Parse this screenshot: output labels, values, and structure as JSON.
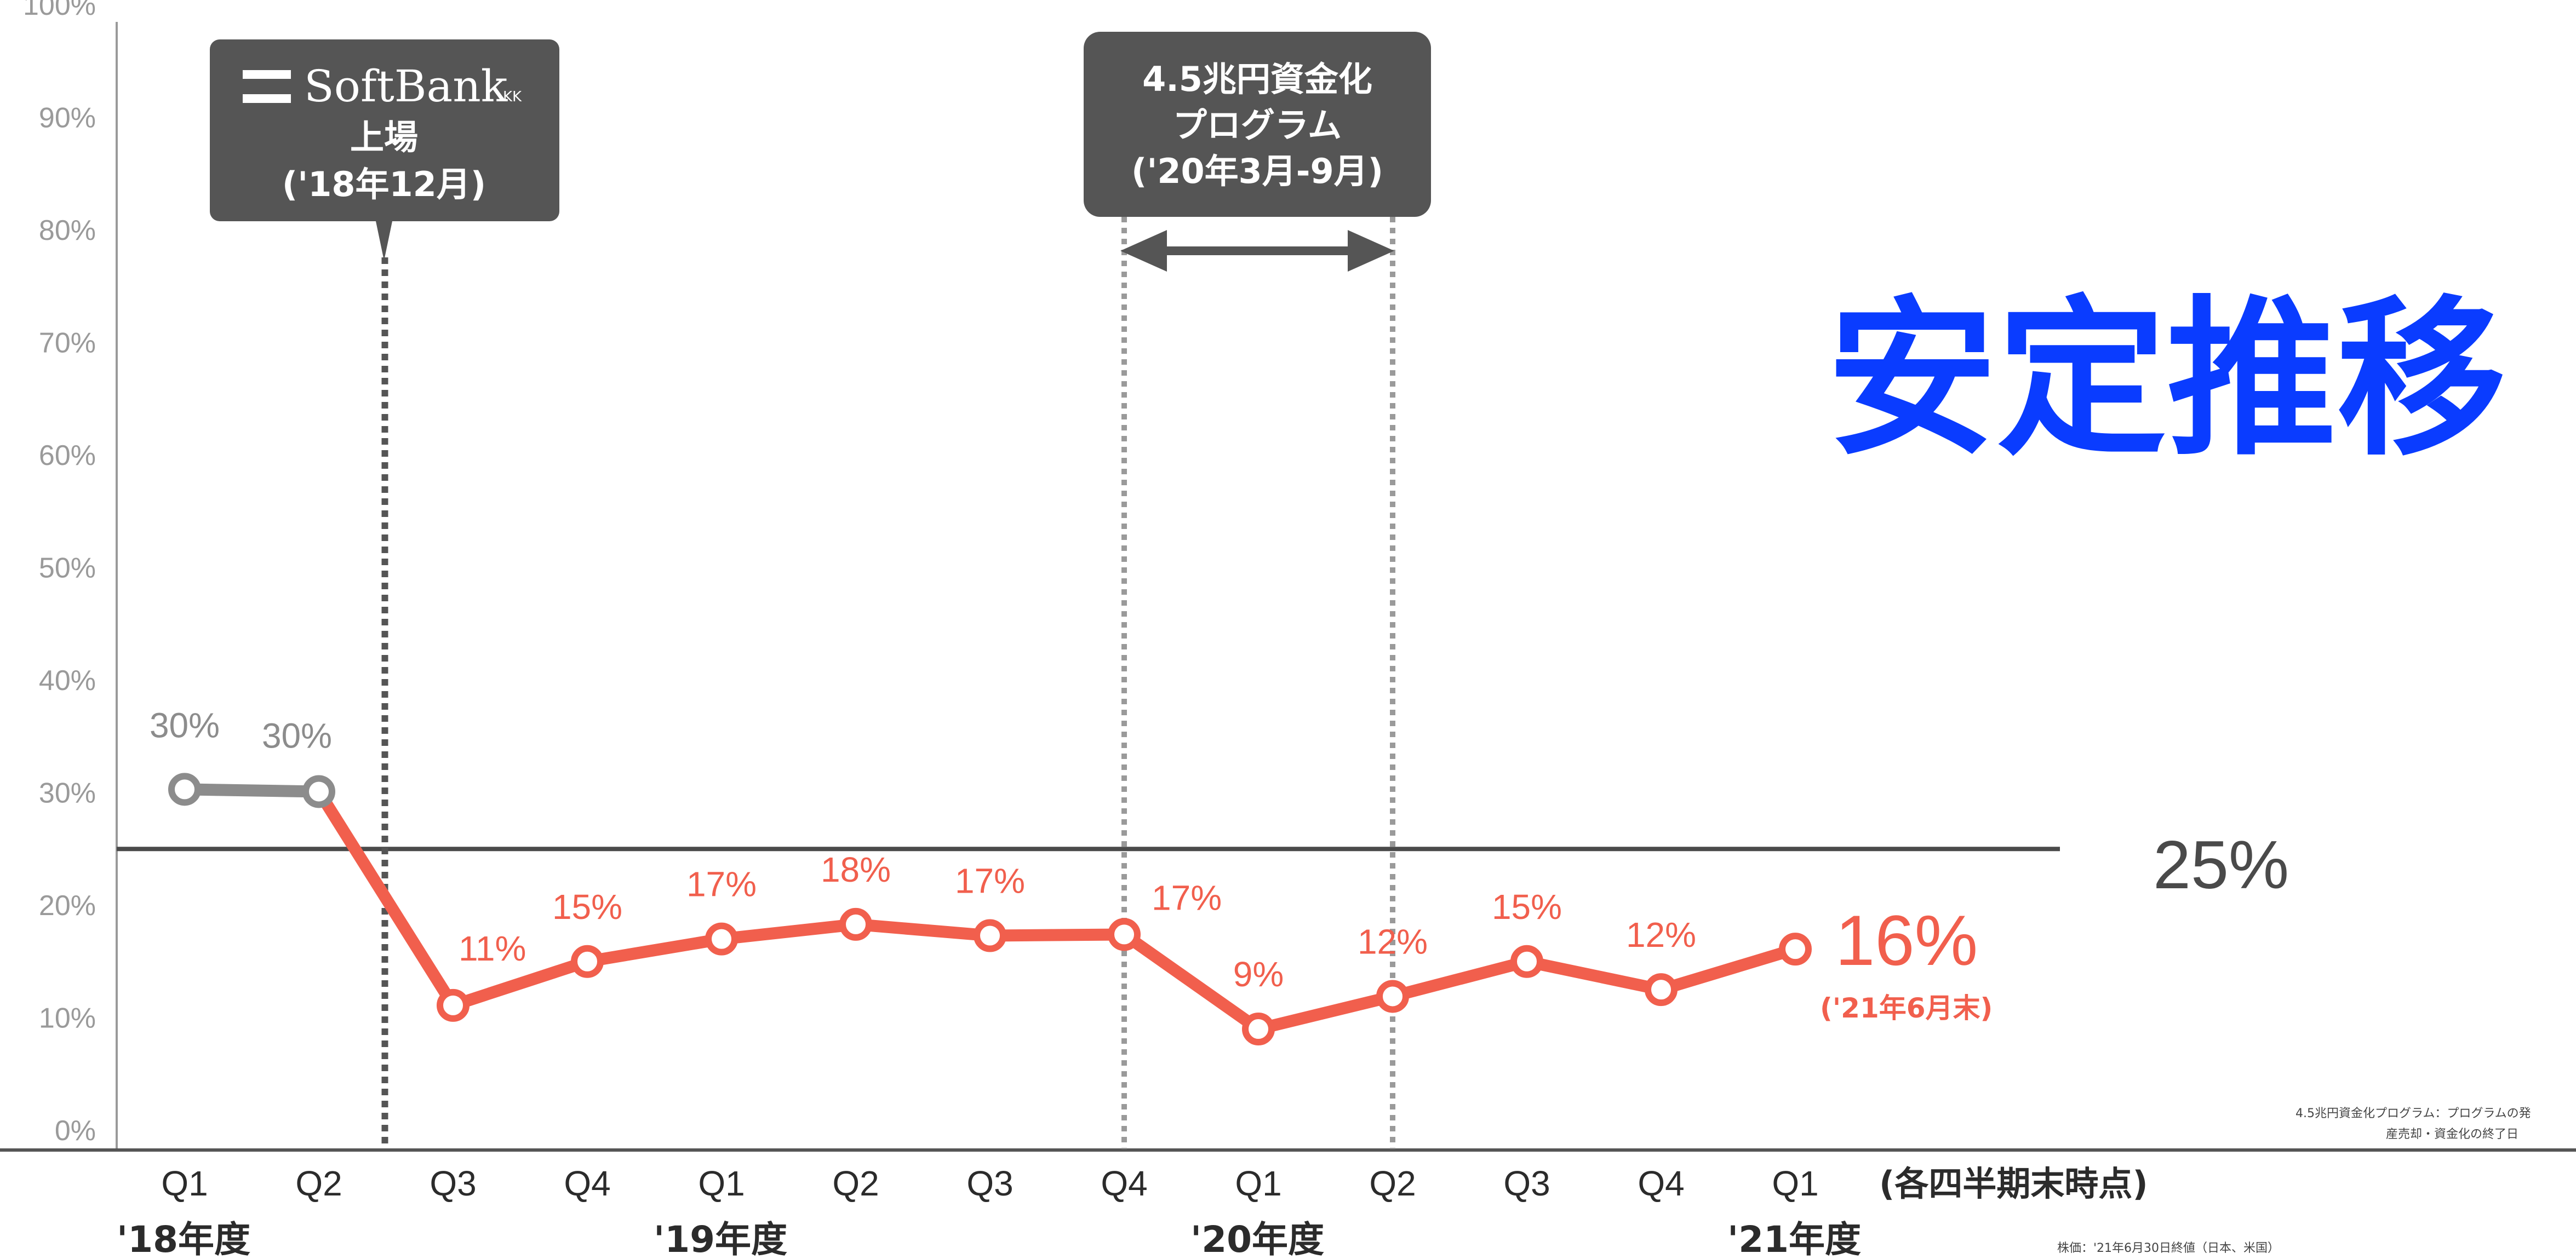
{
  "headline": "安定推移",
  "threshold_label": "25%",
  "last_point_big_label": "16%",
  "last_point_sub_label": "('21年6月末)",
  "x_unit_note": "(各四半期末時点)",
  "listing_box": {
    "logo_text": "SoftBank",
    "logo_suffix": "KK",
    "line1": "上場",
    "line2": "('18年12月)"
  },
  "program_box": {
    "line1": "4.5兆円資金化",
    "line2": "プログラム",
    "line3": "('20年3月-9月)"
  },
  "footnotes": {
    "program_note_line1": "4.5兆円資金化プログラム：プログラムの発",
    "program_note_line2": "産売却・資金化の終了日",
    "price_note": "株価：'21年6月30日終値（日本、米国）"
  },
  "year_labels": [
    "'18年度",
    "'19年度",
    "'20年度",
    "'21年度"
  ],
  "colors": {
    "pre_listing": "#8c8c8c",
    "post_listing": "#f15f4d",
    "threshold": "#4a4a4a",
    "headline": "#0a3cff",
    "box": "#555555"
  },
  "chart_data": {
    "type": "line",
    "categories": [
      "Q1",
      "Q2",
      "Q3",
      "Q4",
      "Q1",
      "Q2",
      "Q3",
      "Q4",
      "Q1",
      "Q2",
      "Q3",
      "Q4",
      "Q1"
    ],
    "y_ticks": [
      "0%",
      "10%",
      "20%",
      "30%",
      "40%",
      "50%",
      "60%",
      "70%",
      "80%",
      "90%",
      "100%"
    ],
    "ylim": [
      0,
      100
    ],
    "series": [
      {
        "name": "",
        "values": [
          30.3,
          30.1,
          null,
          null,
          null,
          null,
          null,
          null,
          null,
          null,
          null,
          null,
          null
        ],
        "labels": [
          "30%",
          "30%",
          "",
          "",
          "",
          "",
          "",
          "",
          "",
          "",
          "",
          "",
          ""
        ]
      },
      {
        "name": "",
        "values": [
          null,
          30.1,
          11.1,
          15.0,
          17.0,
          18.3,
          17.3,
          17.4,
          9.0,
          11.9,
          15.0,
          12.5,
          16.1
        ],
        "labels": [
          "",
          "",
          "11%",
          "15%",
          "17%",
          "18%",
          "17%",
          "17%",
          "9%",
          "12%",
          "15%",
          "12%",
          ""
        ]
      }
    ],
    "reference_line": {
      "value": 25
    },
    "markers": {
      "listing_after_index": 1,
      "program_start_index": 7,
      "program_end_index": 9
    },
    "grid": false
  }
}
